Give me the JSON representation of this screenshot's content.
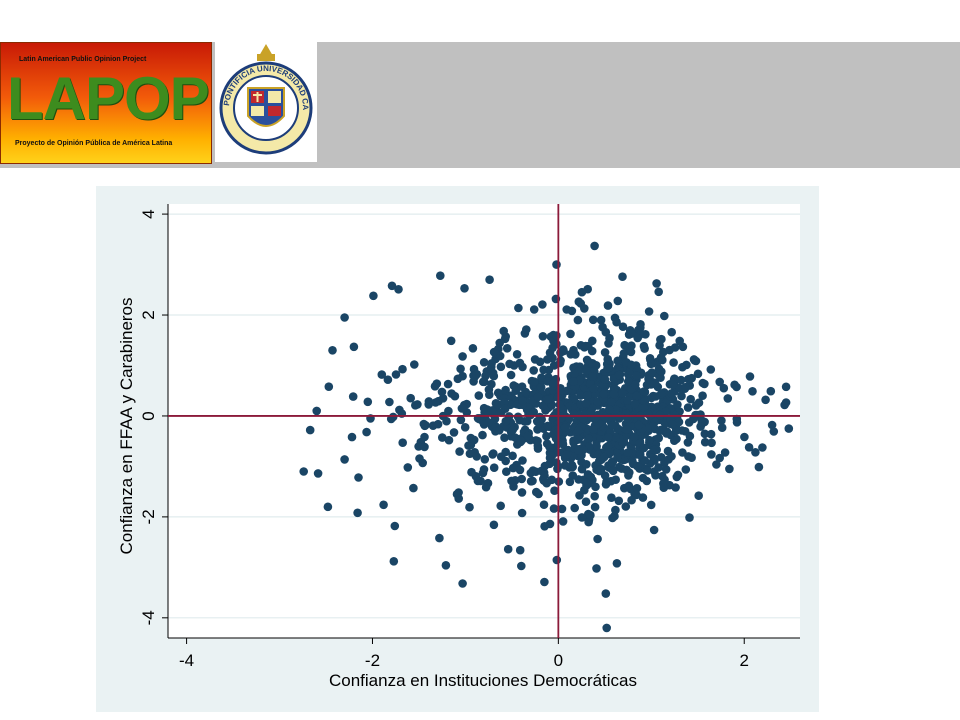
{
  "header": {
    "lapop_logo": {
      "top_text": "Latin American Public Opinion Project",
      "wordmark": "LAPOP",
      "bottom_text": "Proyecto de Opinión Pública de América Latina"
    },
    "university_seal": {
      "text": "PONTIFICIA UNIVERSIDAD CATOLICA DE CHILE"
    }
  },
  "colors": {
    "header_bar": "#c0c0c0",
    "plot_panel": "#eaf2f3",
    "marker": "#1a4565",
    "reference_line": "#8b1a3a",
    "grid": "#e1ecee"
  },
  "chart_data": {
    "type": "scatter",
    "xlabel": "Confianza en Instituciones Democráticas",
    "ylabel": "Confianza en FFAA y Carabineros",
    "xlim": [
      -4.2,
      2.6
    ],
    "ylim": [
      -4.4,
      4.2
    ],
    "xticks": [
      -4,
      -2,
      0,
      2
    ],
    "yticks": [
      -4,
      -2,
      0,
      2,
      4
    ],
    "tick_labels_x": [
      "-4",
      "-2",
      "0",
      "2"
    ],
    "tick_labels_y": [
      "-4",
      "-2",
      "0",
      "2",
      "4"
    ],
    "reference_lines": {
      "x": 0,
      "y": 0
    },
    "grid": true,
    "marker": "filled-circle",
    "n_points_estimated": 1200,
    "points": [
      [
        0.39,
        3.37
      ],
      [
        -0.02,
        3.0
      ],
      [
        0.69,
        2.76
      ],
      [
        -1.27,
        2.78
      ],
      [
        -0.74,
        2.7
      ],
      [
        1.08,
        2.46
      ],
      [
        -1.01,
        2.53
      ],
      [
        -1.79,
        2.58
      ],
      [
        -0.43,
        2.14
      ],
      [
        -0.26,
        2.11
      ],
      [
        0.09,
        2.11
      ],
      [
        0.24,
        2.23
      ],
      [
        0.64,
        2.28
      ],
      [
        -1.72,
        2.51
      ],
      [
        -1.99,
        2.38
      ],
      [
        -2.3,
        1.95
      ],
      [
        -2.2,
        1.37
      ],
      [
        -2.43,
        1.3
      ],
      [
        -2.47,
        0.58
      ],
      [
        -2.6,
        0.1
      ],
      [
        -2.67,
        -0.28
      ],
      [
        -2.74,
        -1.1
      ],
      [
        -2.48,
        -1.8
      ],
      [
        -2.16,
        -1.92
      ],
      [
        -1.88,
        -1.76
      ],
      [
        -1.76,
        -2.18
      ],
      [
        -1.77,
        -2.88
      ],
      [
        -1.28,
        -2.42
      ],
      [
        -1.21,
        -2.96
      ],
      [
        -1.03,
        -3.32
      ],
      [
        -0.54,
        -2.64
      ],
      [
        -0.41,
        -2.66
      ],
      [
        -0.15,
        -3.29
      ],
      [
        0.51,
        -3.52
      ],
      [
        0.52,
        -4.2
      ],
      [
        0.41,
        -3.02
      ],
      [
        0.63,
        -2.92
      ],
      [
        1.03,
        -2.26
      ],
      [
        1.51,
        -1.58
      ],
      [
        1.84,
        -1.05
      ],
      [
        2.12,
        -0.72
      ],
      [
        2.3,
        -0.18
      ],
      [
        2.48,
        -0.25
      ],
      [
        2.23,
        0.32
      ],
      [
        1.78,
        0.55
      ],
      [
        1.64,
        0.92
      ],
      [
        1.46,
        1.12
      ],
      [
        1.34,
        1.37
      ],
      [
        1.22,
        1.66
      ],
      [
        1.14,
        1.98
      ],
      [
        0.86,
        1.7
      ],
      [
        0.46,
        1.9
      ],
      [
        -0.08,
        1.57
      ],
      [
        -0.55,
        1.34
      ],
      [
        -1.03,
        1.18
      ],
      [
        -1.55,
        1.02
      ],
      [
        -1.9,
        0.82
      ],
      [
        -2.05,
        0.28
      ],
      [
        -2.22,
        -0.42
      ],
      [
        -2.3,
        -0.86
      ],
      [
        -2.15,
        -1.22
      ],
      [
        -1.56,
        -1.43
      ],
      [
        -1.09,
        -1.55
      ],
      [
        -0.62,
        -1.78
      ],
      [
        -0.09,
        -2.14
      ],
      [
        0.33,
        -2.06
      ],
      [
        0.82,
        -1.54
      ],
      [
        1.16,
        -1.06
      ],
      [
        1.58,
        -0.52
      ],
      [
        1.92,
        -0.06
      ],
      [
        0.05,
        0.08
      ],
      [
        0.18,
        -0.2
      ],
      [
        0.34,
        0.26
      ],
      [
        0.47,
        -0.44
      ],
      [
        0.63,
        0.51
      ],
      [
        0.78,
        -0.16
      ],
      [
        0.94,
        0.33
      ],
      [
        -0.12,
        -0.55
      ],
      [
        -0.33,
        0.42
      ],
      [
        -0.51,
        -0.31
      ],
      [
        -0.72,
        0.63
      ],
      [
        -0.9,
        -0.72
      ],
      [
        0.21,
        0.88
      ],
      [
        0.55,
        1.04
      ],
      [
        0.72,
        -0.86
      ],
      [
        1.05,
        0.12
      ],
      [
        1.21,
        -0.38
      ],
      [
        -0.25,
        1.12
      ],
      [
        -1.24,
        0.35
      ],
      [
        -1.48,
        -0.52
      ],
      [
        -1.71,
        0.12
      ],
      [
        -1.62,
        -1.02
      ],
      [
        0.12,
        -1.02
      ],
      [
        0.28,
        1.36
      ]
    ]
  }
}
